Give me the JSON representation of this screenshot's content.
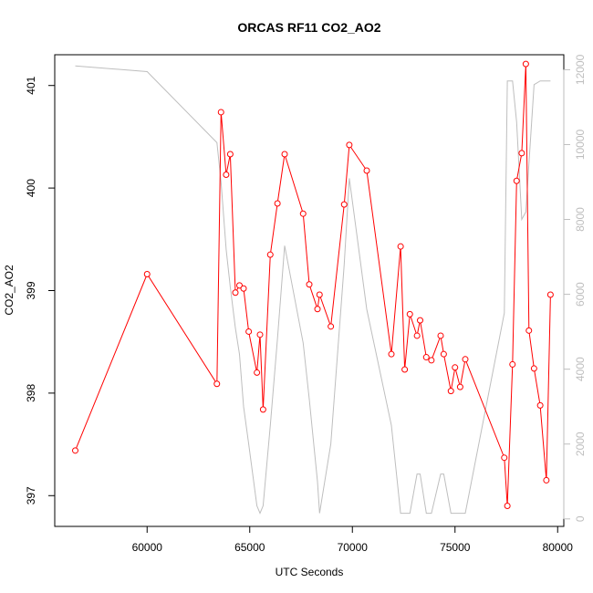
{
  "chart_data": {
    "type": "line",
    "title": "ORCAS RF11 CO2_AO2",
    "xlabel": "UTC Seconds",
    "ylabel": "CO2_AO2",
    "y2label": "",
    "xlim": [
      55500,
      80300
    ],
    "ylim": [
      396.7,
      401.3
    ],
    "y2lim": [
      -200,
      12400
    ],
    "x_ticks": [
      {
        "value": 60000,
        "label": "60000"
      },
      {
        "value": 65000,
        "label": "65000"
      },
      {
        "value": 70000,
        "label": "70000"
      },
      {
        "value": 75000,
        "label": "75000"
      },
      {
        "value": 80000,
        "label": "80000"
      }
    ],
    "y_ticks": [
      {
        "value": 397,
        "label": "397"
      },
      {
        "value": 398,
        "label": "398"
      },
      {
        "value": 399,
        "label": "399"
      },
      {
        "value": 400,
        "label": "400"
      },
      {
        "value": 401,
        "label": "401"
      }
    ],
    "y2_ticks": [
      {
        "value": 0,
        "label": "0"
      },
      {
        "value": 2000,
        "label": "2000"
      },
      {
        "value": 4000,
        "label": "4000"
      },
      {
        "value": 6000,
        "label": "6000"
      },
      {
        "value": 8000,
        "label": "8000"
      },
      {
        "value": 10000,
        "label": "10000"
      },
      {
        "value": 12000,
        "label": "12000"
      }
    ],
    "colors": {
      "co2": "#ff0000",
      "secondary": "#bebebe",
      "axis": "#000000"
    },
    "series": [
      {
        "axis": "left",
        "style": "line+points",
        "x": [
          56500,
          60000,
          63400,
          63600,
          63850,
          64050,
          64300,
          64500,
          64700,
          64950,
          65350,
          65500,
          65650,
          66000,
          66350,
          66700,
          67600,
          67900,
          68300,
          68400,
          68950,
          69600,
          69850,
          70700,
          71900,
          72350,
          72550,
          72800,
          73150,
          73300,
          73600,
          73850,
          74300,
          74450,
          74800,
          75000,
          75250,
          75500,
          77400,
          77550,
          77800,
          78000,
          78250,
          78450,
          78600,
          78850,
          79150,
          79450,
          79650
        ],
        "y": [
          397.44,
          399.16,
          398.09,
          400.74,
          400.13,
          400.33,
          398.98,
          399.05,
          399.02,
          398.6,
          398.2,
          398.57,
          397.84,
          399.35,
          399.85,
          400.33,
          399.75,
          399.06,
          398.82,
          398.96,
          398.65,
          399.84,
          400.42,
          400.17,
          398.38,
          399.43,
          398.23,
          398.77,
          398.56,
          398.71,
          398.35,
          398.32,
          398.56,
          398.38,
          398.02,
          398.25,
          398.06,
          398.33,
          397.37,
          396.9,
          398.28,
          400.07,
          400.34,
          401.21,
          398.61,
          398.24,
          397.88,
          397.15,
          398.96
        ]
      },
      {
        "axis": "right",
        "style": "line",
        "x": [
          56500,
          60000,
          63400,
          63600,
          63850,
          64050,
          64300,
          64500,
          64700,
          64950,
          65350,
          65500,
          65650,
          66000,
          66350,
          66700,
          67600,
          67900,
          68300,
          68400,
          68950,
          69600,
          69850,
          70700,
          71900,
          72350,
          72550,
          72800,
          73150,
          73300,
          73600,
          73850,
          74300,
          74450,
          74800,
          75000,
          75250,
          75500,
          77400,
          77550,
          77800,
          78000,
          78250,
          78450,
          78600,
          78850,
          79150,
          79450,
          79650
        ],
        "y": [
          12100,
          11950,
          10050,
          9000,
          7200,
          6200,
          5100,
          4400,
          3000,
          2000,
          350,
          150,
          350,
          2500,
          4800,
          7300,
          4700,
          3200,
          1000,
          150,
          2000,
          6800,
          9100,
          5600,
          2500,
          150,
          150,
          150,
          1200,
          1200,
          150,
          150,
          1200,
          1200,
          150,
          150,
          150,
          150,
          5500,
          11700,
          11700,
          10600,
          8000,
          8200,
          9500,
          11600,
          11700,
          11700,
          11700
        ]
      }
    ]
  }
}
